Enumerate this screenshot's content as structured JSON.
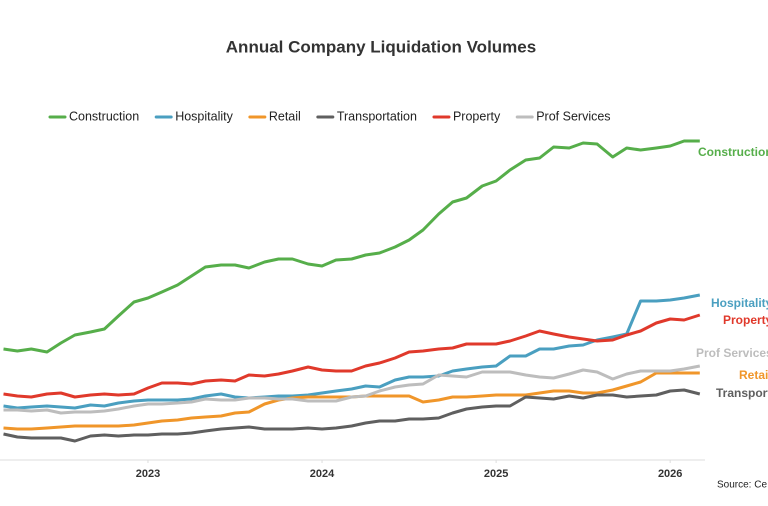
{
  "chart_data": {
    "type": "line",
    "title": "Annual Company Liquidation Volumes",
    "source": "Source: Ce",
    "x": [
      2022.17,
      2022.25,
      2022.33,
      2022.42,
      2022.5,
      2022.58,
      2022.67,
      2022.75,
      2022.83,
      2022.92,
      2023.0,
      2023.08,
      2023.17,
      2023.25,
      2023.33,
      2023.42,
      2023.5,
      2023.58,
      2023.67,
      2023.75,
      2023.83,
      2023.92,
      2024.0,
      2024.08,
      2024.17,
      2024.25,
      2024.33,
      2024.42,
      2024.5,
      2024.58,
      2024.67,
      2024.75,
      2024.83,
      2024.92,
      2025.0,
      2025.08,
      2025.17,
      2025.25,
      2025.33,
      2025.42,
      2025.5,
      2025.58,
      2025.67,
      2025.75,
      2025.83,
      2025.92,
      2026.0,
      2026.08,
      2026.17
    ],
    "xlim": [
      2022.15,
      2026.2
    ],
    "xticks": [
      2023,
      2024,
      2025,
      2026
    ],
    "ylim": [
      0,
      330
    ],
    "series": [
      {
        "name": "Construction",
        "color": "#56ae4a",
        "values": [
          111,
          109,
          111,
          108,
          117,
          125,
          128,
          131,
          144,
          158,
          162,
          168,
          175,
          184,
          193,
          195,
          195,
          192,
          198,
          201,
          201,
          196,
          194,
          200,
          201,
          205,
          207,
          213,
          220,
          230,
          246,
          258,
          262,
          274,
          279,
          290,
          300,
          302,
          313,
          312,
          317,
          316,
          303,
          312,
          310,
          312,
          314,
          319,
          319
        ]
      },
      {
        "name": "Hospitality",
        "color": "#4a9fc0",
        "values": [
          54,
          52,
          53,
          54,
          53,
          52,
          55,
          54,
          57,
          59,
          60,
          60,
          60,
          61,
          64,
          66,
          63,
          62,
          63,
          64,
          64,
          65,
          67,
          69,
          71,
          74,
          73,
          80,
          83,
          83,
          84,
          89,
          91,
          93,
          94,
          104,
          104,
          111,
          111,
          114,
          115,
          120,
          123,
          126,
          159,
          159,
          160,
          162,
          165
        ]
      },
      {
        "name": "Retail",
        "color": "#f0962a",
        "values": [
          32,
          31,
          31,
          32,
          33,
          34,
          34,
          34,
          34,
          35,
          37,
          39,
          40,
          42,
          43,
          44,
          47,
          48,
          56,
          60,
          62,
          63,
          63,
          63,
          63,
          64,
          64,
          64,
          64,
          58,
          60,
          63,
          63,
          64,
          65,
          65,
          65,
          67,
          69,
          69,
          67,
          67,
          70,
          74,
          78,
          87,
          87,
          87,
          87
        ]
      },
      {
        "name": "Transportation",
        "color": "#5f5f5f",
        "values": [
          26,
          23,
          22,
          22,
          22,
          19,
          24,
          25,
          24,
          25,
          25,
          26,
          26,
          27,
          29,
          31,
          32,
          33,
          31,
          31,
          31,
          32,
          31,
          32,
          34,
          37,
          39,
          39,
          41,
          41,
          42,
          47,
          51,
          53,
          54,
          54,
          63,
          62,
          61,
          64,
          62,
          65,
          65,
          63,
          64,
          65,
          69,
          70,
          66
        ]
      },
      {
        "name": "Property",
        "color": "#e0392b",
        "values": [
          66,
          64,
          63,
          66,
          67,
          63,
          65,
          66,
          65,
          66,
          72,
          77,
          77,
          76,
          79,
          80,
          79,
          85,
          84,
          86,
          89,
          93,
          90,
          89,
          89,
          94,
          97,
          102,
          108,
          109,
          111,
          112,
          116,
          116,
          116,
          119,
          124,
          129,
          126,
          123,
          121,
          119,
          120,
          125,
          129,
          137,
          141,
          140,
          145
        ]
      },
      {
        "name": "Prof Services",
        "color": "#bdbdbd",
        "values": [
          50,
          50,
          49,
          50,
          47,
          48,
          48,
          49,
          51,
          54,
          56,
          56,
          57,
          58,
          61,
          60,
          60,
          62,
          62,
          61,
          61,
          59,
          59,
          59,
          63,
          64,
          69,
          73,
          75,
          76,
          85,
          84,
          83,
          88,
          88,
          88,
          85,
          83,
          82,
          86,
          90,
          88,
          81,
          86,
          89,
          89,
          89,
          91,
          94
        ]
      }
    ]
  }
}
